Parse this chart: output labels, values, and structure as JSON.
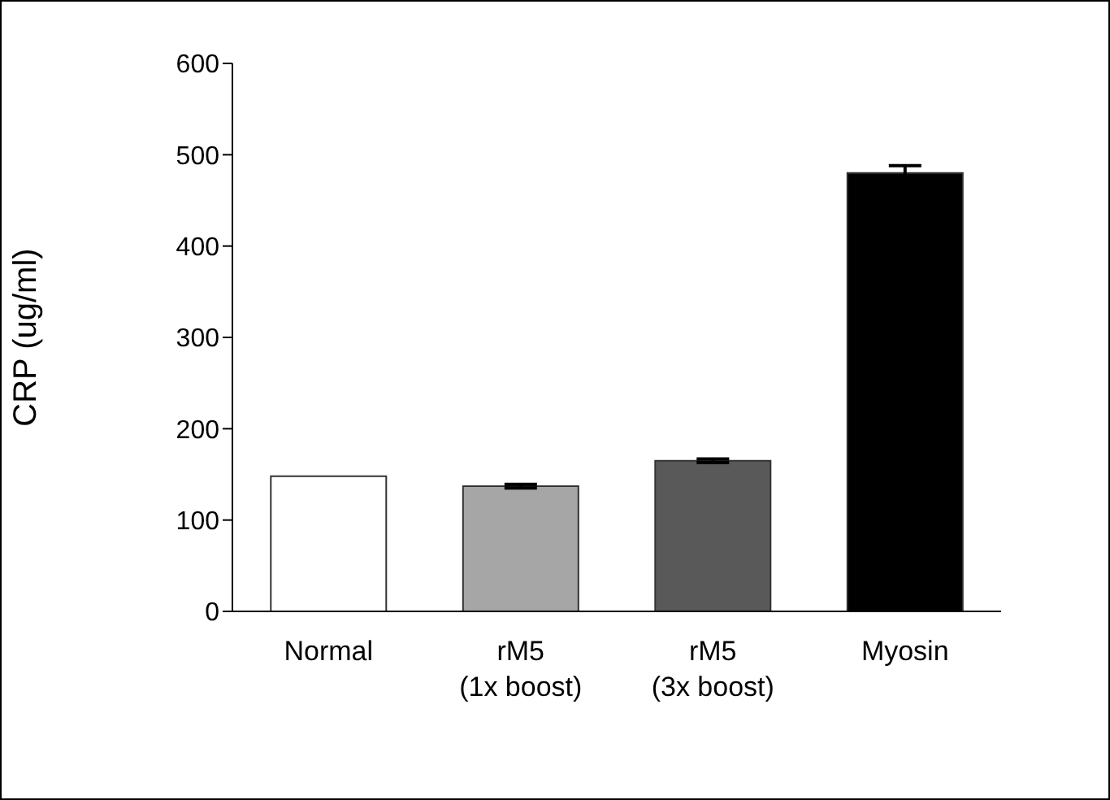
{
  "chart_data": {
    "type": "bar",
    "ylabel": "CRP  (ug/ml)",
    "categories": [
      "Normal",
      "rM5\n(1x boost)",
      "rM5\n(3x boost)",
      "Myosin"
    ],
    "values": [
      148,
      137,
      165,
      480
    ],
    "errors": [
      null,
      2,
      2,
      8
    ],
    "colors": [
      "#ffffff",
      "#a6a6a6",
      "#595959",
      "#000000"
    ],
    "ylim": [
      0,
      600
    ],
    "yticks": [
      0,
      100,
      200,
      300,
      400,
      500,
      600
    ],
    "grid": false,
    "legend": false
  }
}
